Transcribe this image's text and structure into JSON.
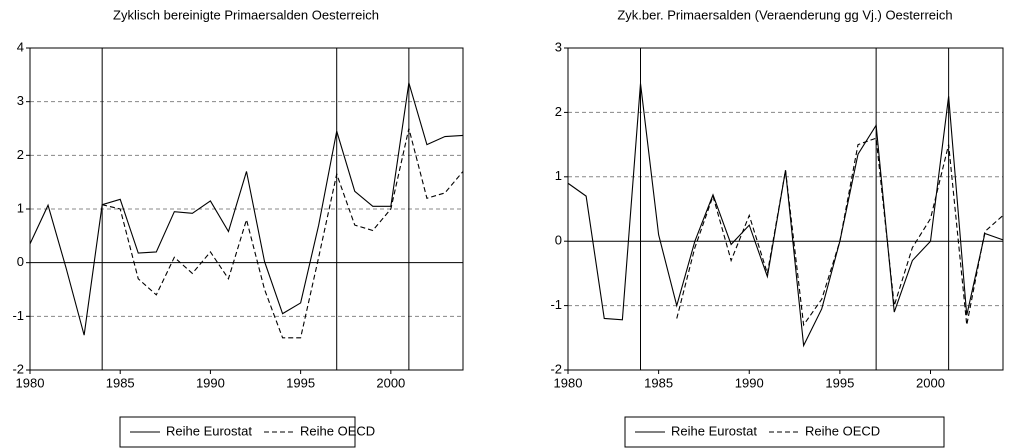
{
  "chart_data": [
    {
      "type": "line",
      "title": "Zyklisch bereinigte Primaersalden Oesterreich",
      "x": [
        1980,
        1981,
        1982,
        1983,
        1984,
        1985,
        1986,
        1987,
        1988,
        1989,
        1990,
        1991,
        1992,
        1993,
        1994,
        1995,
        1996,
        1997,
        1998,
        1999,
        2000,
        2001,
        2002,
        2003,
        2004
      ],
      "series": [
        {
          "name": "Reihe Eurostat",
          "color": "#000000",
          "dash": "solid",
          "values": [
            0.35,
            1.07,
            -0.1,
            -1.35,
            1.08,
            1.18,
            0.18,
            0.2,
            0.95,
            0.92,
            1.15,
            0.58,
            1.7,
            0.02,
            -0.95,
            -0.75,
            0.7,
            2.45,
            1.33,
            1.05,
            1.05,
            3.35,
            2.2,
            2.35,
            2.37
          ]
        },
        {
          "name": "Reihe OECD",
          "color": "#000000",
          "dash": "dashed",
          "values": [
            null,
            null,
            null,
            null,
            1.08,
            1.0,
            -0.3,
            -0.6,
            0.1,
            -0.2,
            0.2,
            -0.3,
            0.8,
            -0.5,
            -1.4,
            -1.4,
            0.1,
            1.65,
            0.7,
            0.6,
            1.0,
            2.5,
            1.2,
            1.3,
            1.7
          ]
        }
      ],
      "xlim": [
        1980,
        2004
      ],
      "xticks": [
        1980,
        1985,
        1990,
        1995,
        2000
      ],
      "ylim": [
        -2,
        4
      ],
      "yticks": [
        -2,
        -1,
        0,
        1,
        2,
        3,
        4
      ],
      "grid": true,
      "reference_x": [
        1984,
        1997,
        2001
      ],
      "legend": "bottom"
    },
    {
      "type": "line",
      "title": "Zyk.ber. Primaersalden (Veraenderung gg Vj.) Oesterreich",
      "x": [
        1980,
        1981,
        1982,
        1983,
        1984,
        1985,
        1986,
        1987,
        1988,
        1989,
        1990,
        1991,
        1992,
        1993,
        1994,
        1995,
        1996,
        1997,
        1998,
        1999,
        2000,
        2001,
        2002,
        2003,
        2004
      ],
      "series": [
        {
          "name": "Reihe Eurostat",
          "color": "#000000",
          "dash": "solid",
          "values": [
            0.9,
            0.7,
            -1.2,
            -1.22,
            2.45,
            0.1,
            -1.0,
            0.0,
            0.72,
            -0.05,
            0.25,
            -0.55,
            1.1,
            -1.62,
            -1.05,
            0.0,
            1.35,
            1.8,
            -1.1,
            -0.3,
            0.0,
            2.25,
            -1.15,
            0.12,
            0.02
          ]
        },
        {
          "name": "Reihe OECD",
          "color": "#000000",
          "dash": "dashed",
          "values": [
            null,
            null,
            null,
            null,
            null,
            null,
            -1.2,
            -0.1,
            0.7,
            -0.3,
            0.4,
            -0.5,
            1.1,
            -1.3,
            -0.9,
            0.0,
            1.5,
            1.6,
            -1.0,
            -0.1,
            0.35,
            1.5,
            -1.3,
            0.15,
            0.4
          ]
        }
      ],
      "xlim": [
        1980,
        2004
      ],
      "xticks": [
        1980,
        1985,
        1990,
        1995,
        2000
      ],
      "ylim": [
        -2,
        3
      ],
      "yticks": [
        -2,
        -1,
        0,
        1,
        2,
        3
      ],
      "grid": true,
      "reference_x": [
        1984,
        1997,
        2001
      ],
      "legend": "bottom"
    }
  ]
}
